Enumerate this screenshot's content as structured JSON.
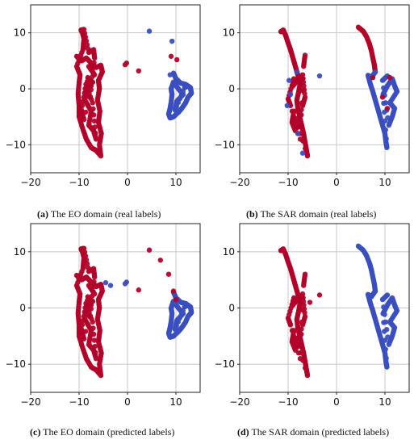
{
  "colors": {
    "class_a": "#b3022a",
    "class_b": "#3a4fbf",
    "grid": "#c8c8c8",
    "frame": "#222222"
  },
  "chart_data": [
    {
      "type": "scatter",
      "panel": "a",
      "caption_letter": "(a)",
      "caption_text": " The EO domain (real labels)",
      "xlim": [
        -20,
        15
      ],
      "ylim": [
        -15,
        15
      ],
      "xticks": [
        -20,
        -10,
        0,
        10
      ],
      "yticks": [
        -10,
        0,
        10
      ],
      "xtick_labels": [
        "−20",
        "−10",
        "0",
        "10"
      ],
      "ytick_labels": [
        "−10",
        "0",
        "10"
      ],
      "grid": true,
      "series": [
        {
          "color_key": "class_a",
          "shape": "eo_left_block"
        },
        {
          "color_key": "class_b",
          "shape": "eo_right_block"
        },
        {
          "color_key": "class_a",
          "points": [
            [
              -0.5,
              4.3
            ],
            [
              -0.2,
              4.6
            ],
            [
              2.3,
              3.2
            ],
            [
              9.0,
              5.8
            ],
            [
              10.2,
              5.2
            ]
          ]
        },
        {
          "color_key": "class_b",
          "points": [
            [
              4.5,
              10.3
            ],
            [
              9.2,
              8.5
            ],
            [
              8.8,
              2.5
            ]
          ]
        }
      ]
    },
    {
      "type": "scatter",
      "panel": "b",
      "caption_letter": "(b)",
      "caption_text": " The SAR domain (real labels)",
      "xlim": [
        -20,
        15
      ],
      "ylim": [
        -15,
        15
      ],
      "xticks": [
        -20,
        -10,
        0,
        10
      ],
      "yticks": [
        -10,
        0,
        10
      ],
      "xtick_labels": [
        "−20",
        "−10",
        "0",
        "10"
      ],
      "ytick_labels": [
        "−10",
        "0",
        "10"
      ],
      "grid": true,
      "series": [
        {
          "color_key": "class_a",
          "shape": "sar_left_stroke"
        },
        {
          "color_key": "class_a",
          "shape": "sar_right_stroke_top"
        },
        {
          "color_key": "class_b",
          "shape": "sar_right_stroke_bottom"
        },
        {
          "color_key": "class_b",
          "points": [
            [
              -9.5,
              -1.0
            ],
            [
              -10.2,
              -3.0
            ],
            [
              -8.2,
              3.0
            ],
            [
              -9.8,
              1.5
            ],
            [
              -3.5,
              2.3
            ],
            [
              -8.0,
              -8.0
            ],
            [
              -7.0,
              -11.5
            ]
          ]
        },
        {
          "color_key": "class_a",
          "points": [
            [
              7.5,
              2.0
            ],
            [
              9.5,
              -1.5
            ],
            [
              10.5,
              -3.5
            ],
            [
              11.0,
              2.0
            ]
          ]
        }
      ]
    },
    {
      "type": "scatter",
      "panel": "c",
      "caption_letter": "(c)",
      "caption_text": " The EO domain (predicted labels)",
      "xlim": [
        -20,
        15
      ],
      "ylim": [
        -15,
        15
      ],
      "xticks": [
        -20,
        -10,
        0,
        10
      ],
      "yticks": [
        -10,
        0,
        10
      ],
      "xtick_labels": [
        "−20",
        "−10",
        "0",
        "10"
      ],
      "ytick_labels": [
        "−10",
        "0",
        "10"
      ],
      "grid": true,
      "series": [
        {
          "color_key": "class_a",
          "shape": "eo_left_block"
        },
        {
          "color_key": "class_b",
          "shape": "eo_right_block"
        },
        {
          "color_key": "class_b",
          "points": [
            [
              -0.5,
              4.3
            ],
            [
              -0.2,
              4.6
            ],
            [
              -3.5,
              4.0
            ],
            [
              -4.5,
              4.5
            ]
          ]
        },
        {
          "color_key": "class_a",
          "points": [
            [
              2.3,
              3.2
            ],
            [
              4.5,
              10.3
            ],
            [
              6.8,
              8.5
            ],
            [
              8.5,
              6.0
            ],
            [
              9.5,
              3.0
            ],
            [
              10.0,
              1.5
            ]
          ]
        }
      ]
    },
    {
      "type": "scatter",
      "panel": "d",
      "caption_letter": "(d)",
      "caption_text": " The SAR domain (predicted labels)",
      "xlim": [
        -20,
        15
      ],
      "ylim": [
        -15,
        15
      ],
      "xticks": [
        -20,
        -10,
        0,
        10
      ],
      "yticks": [
        -10,
        0,
        10
      ],
      "xtick_labels": [
        "−20",
        "−10",
        "0",
        "10"
      ],
      "ytick_labels": [
        "−10",
        "0",
        "10"
      ],
      "grid": true,
      "series": [
        {
          "color_key": "class_a",
          "shape": "sar_left_stroke"
        },
        {
          "color_key": "class_b",
          "shape": "sar_right_stroke_top"
        },
        {
          "color_key": "class_b",
          "shape": "sar_right_stroke_bottom"
        },
        {
          "color_key": "class_a",
          "points": [
            [
              -3.5,
              2.3
            ],
            [
              -5.5,
              1.0
            ]
          ]
        }
      ]
    }
  ],
  "shapes": {
    "eo_left_block": [
      [
        -10.5,
        5.8
      ],
      [
        -9.5,
        5.0
      ],
      [
        -8.5,
        5.5
      ],
      [
        -7.5,
        4.6
      ],
      [
        -6.5,
        3.8
      ],
      [
        -5.5,
        4.2
      ],
      [
        -5.2,
        3.0
      ],
      [
        -6.0,
        1.5
      ],
      [
        -5.8,
        0.0
      ],
      [
        -6.2,
        -2.0
      ],
      [
        -5.7,
        -4.0
      ],
      [
        -6.0,
        -6.0
      ],
      [
        -5.4,
        -8.0
      ],
      [
        -5.8,
        -10.0
      ],
      [
        -5.5,
        -12.0
      ],
      [
        -6.5,
        -11.0
      ],
      [
        -7.5,
        -10.5
      ],
      [
        -8.5,
        -9.0
      ],
      [
        -9.3,
        -7.0
      ],
      [
        -10.0,
        -5.0
      ],
      [
        -10.0,
        -3.0
      ],
      [
        -10.2,
        -1.0
      ],
      [
        -10.0,
        1.0
      ],
      [
        -9.8,
        2.5
      ],
      [
        -10.5,
        4.0
      ],
      [
        -9.2,
        7.0
      ],
      [
        -9.0,
        9.0
      ],
      [
        -9.3,
        10.0
      ],
      [
        -9.6,
        10.5
      ],
      [
        -9.0,
        10.6
      ],
      [
        -8.0,
        6.5
      ],
      [
        -7.0,
        7.0
      ],
      [
        -6.8,
        5.5
      ],
      [
        -7.5,
        0.5
      ],
      [
        -8.2,
        2.0
      ],
      [
        -8.8,
        -2.0
      ],
      [
        -7.5,
        -4.0
      ],
      [
        -8.0,
        -6.5
      ],
      [
        -7.0,
        -7.5
      ],
      [
        -6.5,
        -9.0
      ],
      [
        -7.2,
        -2.5
      ],
      [
        -8.6,
        0.8
      ],
      [
        -9.5,
        -3.8
      ],
      [
        -9.0,
        -5.5
      ],
      [
        -6.8,
        2.5
      ],
      [
        -8.0,
        4.0
      ]
    ],
    "eo_right_block": [
      [
        9.5,
        2.8
      ],
      [
        10.0,
        1.8
      ],
      [
        11.0,
        1.0
      ],
      [
        12.0,
        0.8
      ],
      [
        13.0,
        0.2
      ],
      [
        13.2,
        -0.8
      ],
      [
        12.5,
        -1.5
      ],
      [
        12.0,
        -2.5
      ],
      [
        11.2,
        -3.5
      ],
      [
        10.5,
        -4.2
      ],
      [
        9.5,
        -5.0
      ],
      [
        8.8,
        -5.2
      ],
      [
        8.5,
        -4.5
      ],
      [
        8.8,
        -3.5
      ],
      [
        9.0,
        -2.5
      ],
      [
        9.2,
        -1.0
      ],
      [
        9.0,
        0.0
      ],
      [
        9.5,
        1.2
      ],
      [
        10.5,
        0.0
      ],
      [
        11.5,
        -1.0
      ],
      [
        10.2,
        -2.2
      ],
      [
        9.8,
        -3.8
      ],
      [
        11.8,
        0.2
      ],
      [
        12.5,
        0.5
      ]
    ],
    "sar_left_stroke": [
      [
        -11.5,
        10.2
      ],
      [
        -11.0,
        10.5
      ],
      [
        -10.5,
        9.5
      ],
      [
        -10.0,
        8.2
      ],
      [
        -9.5,
        7.0
      ],
      [
        -9.0,
        5.5
      ],
      [
        -8.5,
        4.0
      ],
      [
        -8.0,
        2.5
      ],
      [
        -7.5,
        1.0
      ],
      [
        -7.8,
        -0.5
      ],
      [
        -8.2,
        -2.0
      ],
      [
        -8.0,
        -3.5
      ],
      [
        -7.6,
        -5.0
      ],
      [
        -7.2,
        -6.5
      ],
      [
        -6.8,
        -8.0
      ],
      [
        -6.5,
        -9.5
      ],
      [
        -6.2,
        -11.0
      ],
      [
        -6.0,
        -12.0
      ],
      [
        -8.8,
        -4.0
      ],
      [
        -9.2,
        -6.0
      ],
      [
        -8.5,
        -7.5
      ],
      [
        -7.0,
        -3.0
      ],
      [
        -6.5,
        -1.5
      ],
      [
        -7.0,
        2.5
      ],
      [
        -9.0,
        0.5
      ],
      [
        -8.8,
        1.8
      ],
      [
        -10.0,
        -1.8
      ],
      [
        -9.5,
        -3.0
      ],
      [
        -7.5,
        -9.0
      ],
      [
        -6.8,
        4.0
      ],
      [
        -6.5,
        6.0
      ]
    ],
    "sar_right_stroke_top": [
      [
        4.5,
        11.0
      ],
      [
        5.5,
        10.3
      ],
      [
        6.2,
        9.3
      ],
      [
        6.8,
        8.0
      ],
      [
        7.2,
        6.8
      ],
      [
        7.5,
        5.5
      ],
      [
        7.8,
        4.3
      ],
      [
        8.0,
        3.0
      ]
    ],
    "sar_right_stroke_bottom": [
      [
        8.0,
        3.0
      ],
      [
        7.2,
        2.0
      ],
      [
        6.5,
        2.4
      ],
      [
        7.0,
        0.8
      ],
      [
        7.5,
        -0.5
      ],
      [
        8.0,
        -2.0
      ],
      [
        8.5,
        -3.5
      ],
      [
        9.0,
        -5.0
      ],
      [
        9.5,
        -6.5
      ],
      [
        10.0,
        -8.0
      ],
      [
        10.2,
        -9.5
      ],
      [
        10.4,
        -10.5
      ],
      [
        9.6,
        -1.0
      ],
      [
        10.5,
        0.5
      ],
      [
        11.5,
        1.8
      ],
      [
        12.0,
        0.5
      ],
      [
        12.5,
        -0.5
      ],
      [
        11.0,
        -2.5
      ],
      [
        12.0,
        -3.5
      ],
      [
        11.5,
        -5.0
      ],
      [
        10.8,
        -6.5
      ],
      [
        9.5,
        1.5
      ],
      [
        10.5,
        2.3
      ]
    ]
  }
}
